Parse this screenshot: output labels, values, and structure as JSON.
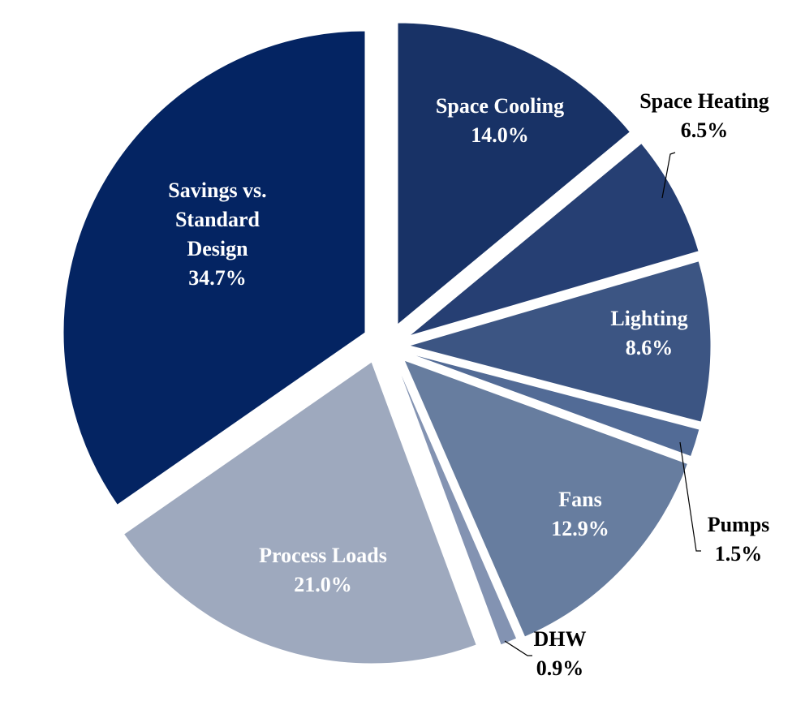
{
  "chart_data": {
    "type": "pie",
    "title": "",
    "start_angle_deg": 0,
    "direction": "clockwise",
    "slices": [
      {
        "label": "Space Cooling",
        "value": 14.0,
        "value_label": "14.0%",
        "color": "#183266",
        "label_color": "#ffffff",
        "exploded": true,
        "label_position": "inside"
      },
      {
        "label": "Space Heating",
        "value": 6.5,
        "value_label": "6.5%",
        "color": "#263f73",
        "label_color": "#000000",
        "exploded": true,
        "label_position": "outside"
      },
      {
        "label": "Lighting",
        "value": 8.6,
        "value_label": "8.6%",
        "color": "#3c5583",
        "label_color": "#ffffff",
        "exploded": true,
        "label_position": "inside"
      },
      {
        "label": "Pumps",
        "value": 1.5,
        "value_label": "1.5%",
        "color": "#526b96",
        "label_color": "#000000",
        "exploded": true,
        "label_position": "outside"
      },
      {
        "label": "Fans",
        "value": 12.9,
        "value_label": "12.9%",
        "color": "#677d9f",
        "label_color": "#ffffff",
        "exploded": true,
        "label_position": "inside"
      },
      {
        "label": "DHW",
        "value": 0.9,
        "value_label": "0.9%",
        "color": "#8393b2",
        "label_color": "#000000",
        "exploded": true,
        "label_position": "outside"
      },
      {
        "label": "Process Loads",
        "value": 21.0,
        "value_label": "21.0%",
        "color": "#9ea9be",
        "label_color": "#ffffff",
        "exploded": true,
        "label_position": "inside"
      },
      {
        "label": "Savings vs. Standard Design",
        "label_lines": [
          "Savings vs.",
          "Standard",
          "Design"
        ],
        "value": 34.7,
        "value_label": "34.7%",
        "color": "#042462",
        "label_color": "#ffffff",
        "exploded": true,
        "label_position": "inside"
      }
    ]
  }
}
